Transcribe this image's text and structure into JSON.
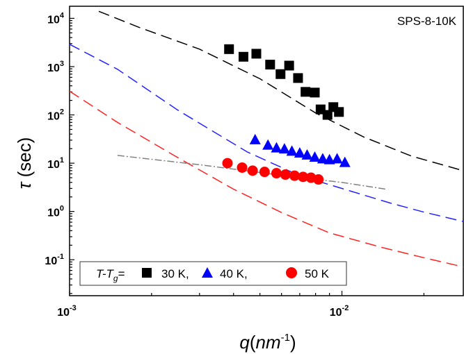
{
  "chart_data": {
    "type": "scatter",
    "title": "",
    "xlabel": {
      "symbol": "q",
      "paren_open": "(",
      "unit_base": "nm",
      "unit_exp": "-1",
      "paren_close": ")"
    },
    "ylabel": {
      "symbol": "τ",
      "rest": " (sec)"
    },
    "x_scale": "log",
    "y_scale": "log",
    "xlim": [
      0.001,
      0.0279
    ],
    "ylim": [
      0.018,
      17800
    ],
    "annotation": "SPS-8-10K",
    "x_ticks": [
      {
        "value": 0.001,
        "base": "10",
        "exp": "-3"
      },
      {
        "value": 0.01,
        "base": "10",
        "exp": "-2"
      }
    ],
    "y_ticks": [
      {
        "value": 0.1,
        "base": "10",
        "exp": "-1"
      },
      {
        "value": 1,
        "base": "10",
        "exp": "0"
      },
      {
        "value": 10,
        "base": "10",
        "exp": "1"
      },
      {
        "value": 100,
        "base": "10",
        "exp": "2"
      },
      {
        "value": 1000,
        "base": "10",
        "exp": "3"
      },
      {
        "value": 10000,
        "base": "10",
        "exp": "4"
      }
    ],
    "legend": {
      "prefix_main": "T-T",
      "prefix_sub": "g",
      "prefix_eq": "=",
      "placement": "bottom-left"
    },
    "series": [
      {
        "name": "30 K,",
        "marker": "square",
        "color": "#000000",
        "points": [
          [
            0.00385,
            2300
          ],
          [
            0.00435,
            1600
          ],
          [
            0.00485,
            1850
          ],
          [
            0.00545,
            1100
          ],
          [
            0.00595,
            700
          ],
          [
            0.0064,
            1050
          ],
          [
            0.0069,
            580
          ],
          [
            0.00735,
            300
          ],
          [
            0.00795,
            290
          ],
          [
            0.00835,
            130
          ],
          [
            0.00885,
            100
          ],
          [
            0.0093,
            145
          ],
          [
            0.00975,
            115
          ]
        ]
      },
      {
        "name": "40 K,",
        "marker": "triangle",
        "color": "#0000ff",
        "points": [
          [
            0.0048,
            31
          ],
          [
            0.00535,
            24
          ],
          [
            0.00575,
            21
          ],
          [
            0.00615,
            20
          ],
          [
            0.00655,
            18
          ],
          [
            0.007,
            16.5
          ],
          [
            0.00745,
            15
          ],
          [
            0.00795,
            13.5
          ],
          [
            0.0085,
            12.5
          ],
          [
            0.009,
            12
          ],
          [
            0.0096,
            12.5
          ],
          [
            0.01025,
            10.5
          ]
        ]
      },
      {
        "name": "50 K",
        "marker": "circle",
        "color": "#ff0000",
        "points": [
          [
            0.0038,
            10
          ],
          [
            0.0043,
            8.1
          ],
          [
            0.0047,
            7
          ],
          [
            0.0052,
            6.6
          ],
          [
            0.00575,
            6.2
          ],
          [
            0.0062,
            5.8
          ],
          [
            0.0067,
            5.5
          ],
          [
            0.0072,
            5.2
          ],
          [
            0.0077,
            5
          ],
          [
            0.0082,
            4.6
          ]
        ]
      }
    ],
    "fit_lines": [
      {
        "id": "fit-30k",
        "color": "#000000",
        "style": "dashed",
        "points": [
          [
            0.00128,
            14000
          ],
          [
            0.0018,
            6500
          ],
          [
            0.003,
            2300
          ],
          [
            0.005,
            560
          ],
          [
            0.008,
            110
          ],
          [
            0.012,
            35
          ],
          [
            0.018,
            14
          ],
          [
            0.0279,
            7
          ]
        ]
      },
      {
        "id": "fit-40k",
        "color": "#2222ff",
        "style": "dashed",
        "points": [
          [
            0.001,
            2900
          ],
          [
            0.0015,
            880
          ],
          [
            0.0025,
            125
          ],
          [
            0.0045,
            17
          ],
          [
            0.007,
            5.5
          ],
          [
            0.01,
            3
          ],
          [
            0.015,
            1.5
          ],
          [
            0.02,
            0.97
          ],
          [
            0.0279,
            0.62
          ]
        ]
      },
      {
        "id": "fit-50k",
        "color": "#ff2222",
        "style": "dashed",
        "points": [
          [
            0.001,
            310
          ],
          [
            0.0015,
            70
          ],
          [
            0.0025,
            13
          ],
          [
            0.004,
            2.9
          ],
          [
            0.006,
            0.95
          ],
          [
            0.009,
            0.36
          ],
          [
            0.014,
            0.18
          ],
          [
            0.02,
            0.11
          ],
          [
            0.0279,
            0.071
          ]
        ]
      },
      {
        "id": "fit-slow",
        "color": "#808080",
        "style": "dashdot",
        "points": [
          [
            0.0015,
            14.5
          ],
          [
            0.003,
            9.3
          ],
          [
            0.006,
            5.6
          ],
          [
            0.01,
            4
          ],
          [
            0.0145,
            2.9
          ]
        ]
      }
    ]
  }
}
